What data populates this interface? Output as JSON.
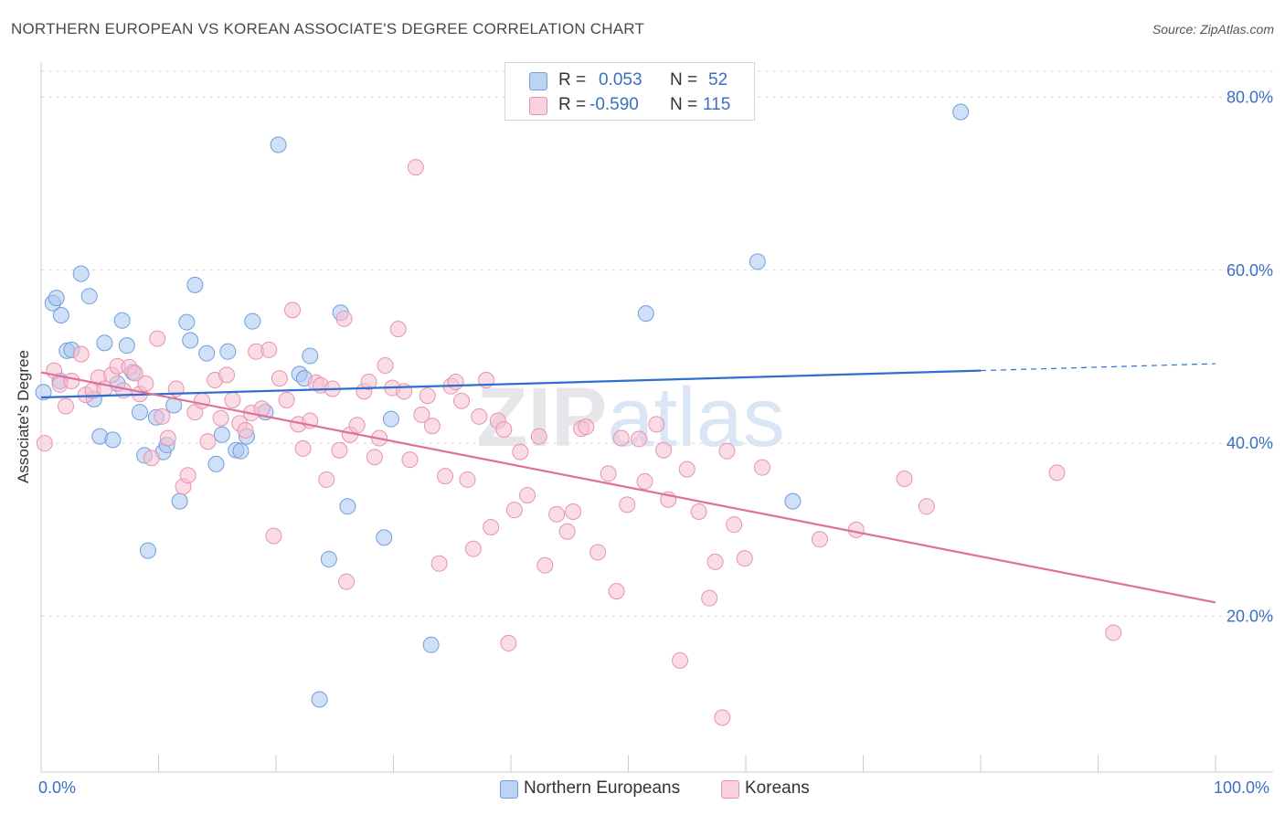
{
  "header": {
    "title": "NORTHERN EUROPEAN VS KOREAN ASSOCIATE'S DEGREE CORRELATION CHART",
    "source": "Source: ZipAtlas.com"
  },
  "legend": {
    "rows": [
      {
        "r_label": "R =",
        "r_value": "0.053",
        "n_label": "N =",
        "n_value": "52"
      },
      {
        "r_label": "R =",
        "r_value": "-0.590",
        "n_label": "N =",
        "n_value": "115"
      }
    ]
  },
  "colors": {
    "blue_fill": "#a9c6ee",
    "blue_stroke": "#6f9fdc",
    "blue_line": "#2e6fcf",
    "pink_fill": "#f5bfd0",
    "pink_stroke": "#e892b0",
    "pink_line": "#e0709a",
    "tick_text": "#3a6fc4",
    "grid": "#dcdcdc"
  },
  "chart_data": {
    "type": "scatter",
    "title": "NORTHERN EUROPEAN VS KOREAN ASSOCIATE'S DEGREE CORRELATION CHART",
    "xlabel": "",
    "ylabel": "Associate's Degree",
    "xlim": [
      0,
      100
    ],
    "ylim": [
      2,
      83
    ],
    "x_tick_labels": [
      "0.0%",
      "100.0%"
    ],
    "y_ticks": [
      20,
      40,
      60,
      80
    ],
    "y_tick_labels": [
      "20.0%",
      "40.0%",
      "60.0%",
      "80.0%"
    ],
    "grid": true,
    "legend_placement": "top-center",
    "watermark": "ZIPatlas",
    "series": [
      {
        "name": "Northern Europeans",
        "R": 0.053,
        "N": 52,
        "trend": {
          "x0": 0,
          "y0": 45.3,
          "x1": 80,
          "y1": 48.4,
          "dash_to_x": 100,
          "dash_to_y": 49.2
        },
        "points": [
          [
            0.2,
            45.9
          ],
          [
            1,
            56.2
          ],
          [
            1.3,
            56.8
          ],
          [
            1.7,
            54.8
          ],
          [
            2.2,
            50.7
          ],
          [
            2.6,
            50.8
          ],
          [
            3.4,
            59.6
          ],
          [
            4.1,
            57.0
          ],
          [
            4.5,
            45.1
          ],
          [
            5,
            40.8
          ],
          [
            5.4,
            51.6
          ],
          [
            6.1,
            40.4
          ],
          [
            6.5,
            46.9
          ],
          [
            6.9,
            54.2
          ],
          [
            7.3,
            51.3
          ],
          [
            7.8,
            48.2
          ],
          [
            8.4,
            43.6
          ],
          [
            8.8,
            38.6
          ],
          [
            9.1,
            27.6
          ],
          [
            9.8,
            43.0
          ],
          [
            10.4,
            39.0
          ],
          [
            10.7,
            39.8
          ],
          [
            11.3,
            44.4
          ],
          [
            11.8,
            33.3
          ],
          [
            12.4,
            54.0
          ],
          [
            12.7,
            51.9
          ],
          [
            13.1,
            58.3
          ],
          [
            14.1,
            50.4
          ],
          [
            14.9,
            37.6
          ],
          [
            15.4,
            41.0
          ],
          [
            15.9,
            50.6
          ],
          [
            16.6,
            39.2
          ],
          [
            17,
            39.1
          ],
          [
            17.5,
            40.8
          ],
          [
            18,
            54.1
          ],
          [
            19.1,
            43.6
          ],
          [
            20.2,
            74.5
          ],
          [
            22,
            48.0
          ],
          [
            22.4,
            47.5
          ],
          [
            22.9,
            50.1
          ],
          [
            24.5,
            26.6
          ],
          [
            25.5,
            55.1
          ],
          [
            26.1,
            32.7
          ],
          [
            23.7,
            10.4
          ],
          [
            29.2,
            29.1
          ],
          [
            29.8,
            42.8
          ],
          [
            33.2,
            16.7
          ],
          [
            51.5,
            55.0
          ],
          [
            61,
            61.0
          ],
          [
            64,
            33.3
          ],
          [
            78.3,
            78.3
          ],
          [
            1.6,
            47.2
          ]
        ]
      },
      {
        "name": "Koreans",
        "R": -0.59,
        "N": 115,
        "trend": {
          "x0": 0,
          "y0": 48.2,
          "x1": 100,
          "y1": 21.6
        },
        "points": [
          [
            0.3,
            40.0
          ],
          [
            1.1,
            48.4
          ],
          [
            1.6,
            46.8
          ],
          [
            2.1,
            44.3
          ],
          [
            2.6,
            47.2
          ],
          [
            3.4,
            50.3
          ],
          [
            3.8,
            45.6
          ],
          [
            4.4,
            46.1
          ],
          [
            4.9,
            47.6
          ],
          [
            5.4,
            46.3
          ],
          [
            6,
            47.9
          ],
          [
            6.5,
            48.9
          ],
          [
            7,
            46.1
          ],
          [
            7.5,
            48.8
          ],
          [
            8,
            48.1
          ],
          [
            8.4,
            45.7
          ],
          [
            8.9,
            46.9
          ],
          [
            9.4,
            38.3
          ],
          [
            9.9,
            52.1
          ],
          [
            10.3,
            43.1
          ],
          [
            10.8,
            40.6
          ],
          [
            11.5,
            46.3
          ],
          [
            12.1,
            35.0
          ],
          [
            12.5,
            36.3
          ],
          [
            13.1,
            43.6
          ],
          [
            13.7,
            44.9
          ],
          [
            14.2,
            40.2
          ],
          [
            14.8,
            47.3
          ],
          [
            15.3,
            42.9
          ],
          [
            15.8,
            47.9
          ],
          [
            16.3,
            45.0
          ],
          [
            16.9,
            42.3
          ],
          [
            17.4,
            41.5
          ],
          [
            17.9,
            43.5
          ],
          [
            18.3,
            50.6
          ],
          [
            18.8,
            44.0
          ],
          [
            19.4,
            50.8
          ],
          [
            19.8,
            29.3
          ],
          [
            20.3,
            47.5
          ],
          [
            20.9,
            45.0
          ],
          [
            21.4,
            55.4
          ],
          [
            21.9,
            42.2
          ],
          [
            22.3,
            39.4
          ],
          [
            22.9,
            42.6
          ],
          [
            23.4,
            47.0
          ],
          [
            23.8,
            46.7
          ],
          [
            24.3,
            35.8
          ],
          [
            24.8,
            46.3
          ],
          [
            25.4,
            39.2
          ],
          [
            25.8,
            54.4
          ],
          [
            26.3,
            41.0
          ],
          [
            26.9,
            42.1
          ],
          [
            27.5,
            46.0
          ],
          [
            27.9,
            47.1
          ],
          [
            28.4,
            38.4
          ],
          [
            28.8,
            40.6
          ],
          [
            29.3,
            49.0
          ],
          [
            29.9,
            46.4
          ],
          [
            30.4,
            53.2
          ],
          [
            30.9,
            46.0
          ],
          [
            31.4,
            38.1
          ],
          [
            31.9,
            71.9
          ],
          [
            32.4,
            43.3
          ],
          [
            32.9,
            45.5
          ],
          [
            33.3,
            42.0
          ],
          [
            33.9,
            26.1
          ],
          [
            34.4,
            36.2
          ],
          [
            34.9,
            46.6
          ],
          [
            35.3,
            47.1
          ],
          [
            35.8,
            44.9
          ],
          [
            36.3,
            35.8
          ],
          [
            36.8,
            27.8
          ],
          [
            37.3,
            43.1
          ],
          [
            37.9,
            47.3
          ],
          [
            38.3,
            30.3
          ],
          [
            38.9,
            42.6
          ],
          [
            39.4,
            41.6
          ],
          [
            39.8,
            16.9
          ],
          [
            40.3,
            32.3
          ],
          [
            40.8,
            39.0
          ],
          [
            41.4,
            34.0
          ],
          [
            42.4,
            40.8
          ],
          [
            42.9,
            25.9
          ],
          [
            43.9,
            31.8
          ],
          [
            44.8,
            29.8
          ],
          [
            45.3,
            32.1
          ],
          [
            46,
            41.7
          ],
          [
            46.4,
            41.9
          ],
          [
            47.4,
            27.4
          ],
          [
            48.3,
            36.5
          ],
          [
            49,
            22.9
          ],
          [
            49.4,
            40.6
          ],
          [
            49.9,
            32.9
          ],
          [
            50.9,
            40.5
          ],
          [
            51.4,
            35.6
          ],
          [
            52.4,
            42.2
          ],
          [
            53,
            39.2
          ],
          [
            53.4,
            33.5
          ],
          [
            54.4,
            14.9
          ],
          [
            55,
            37.0
          ],
          [
            56,
            32.1
          ],
          [
            56.9,
            22.1
          ],
          [
            57.4,
            26.3
          ],
          [
            58.4,
            39.1
          ],
          [
            59,
            30.6
          ],
          [
            59.9,
            26.7
          ],
          [
            61.4,
            37.2
          ],
          [
            66.3,
            28.9
          ],
          [
            69.4,
            30.0
          ],
          [
            73.5,
            35.9
          ],
          [
            75.4,
            32.7
          ],
          [
            86.5,
            36.6
          ],
          [
            91.3,
            18.1
          ],
          [
            58,
            8.3
          ],
          [
            26,
            24.0
          ]
        ]
      }
    ]
  },
  "bottom_legend": {
    "items": [
      {
        "label": "Northern Europeans"
      },
      {
        "label": "Koreans"
      }
    ]
  }
}
